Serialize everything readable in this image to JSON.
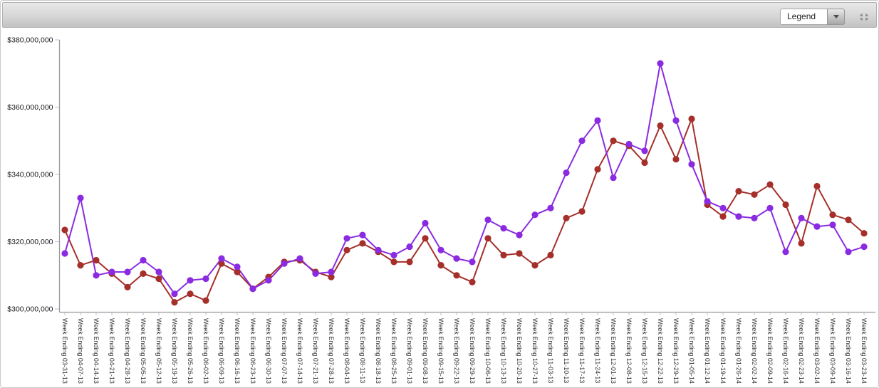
{
  "header": {
    "legend_label": "Legend"
  },
  "colors": {
    "red_series": "#a52f2a",
    "purple_series": "#8a2be2",
    "axis_line": "#999999",
    "tick_mark": "#a9c7e4",
    "axis_text": "#1a1a1a",
    "category_text": "#333333",
    "toolbar_border": "#b2b2b2"
  },
  "chart_data": {
    "type": "line",
    "title": "",
    "xlabel": "",
    "ylabel": "",
    "grid": false,
    "legend_position": "top-right dropdown (collapsed)",
    "marker": "circle",
    "ylim": [
      300000000,
      380000000
    ],
    "ytick_values": [
      380000000,
      360000000,
      340000000,
      320000000,
      300000000
    ],
    "ytick_labels": [
      "$380,000,000",
      "$360,000,000",
      "$340,000,000",
      "$320,000,000",
      "$300,000,000"
    ],
    "categories": [
      "Week Ending 03-31-13",
      "Week Ending 04-07-13",
      "Week Ending 04-14-13",
      "Week Ending 04-21-13",
      "Week Ending 04-28-13",
      "Week Ending 05-05-13",
      "Week Ending 05-12-13",
      "Week Ending 05-19-13",
      "Week Ending 05-26-13",
      "Week Ending 06-02-13",
      "Week Ending 06-09-13",
      "Week Ending 06-16-13",
      "Week Ending 06-23-13",
      "Week Ending 06-30-13",
      "Week Ending 07-07-13",
      "Week Ending 07-14-13",
      "Week Ending 07-21-13",
      "Week Ending 07-28-13",
      "Week Ending 08-04-13",
      "Week Ending 08-11-13",
      "Week Ending 08-18-13",
      "Week Ending 08-25-13",
      "Week Ending 09-01-13",
      "Week Ending 09-08-13",
      "Week Ending 09-15-13",
      "Week Ending 09-22-13",
      "Week Ending 09-29-13",
      "Week Ending 10-06-13",
      "Week Ending 10-13-13",
      "Week Ending 10-20-13",
      "Week Ending 10-27-13",
      "Week Ending 11-03-13",
      "Week Ending 11-10-13",
      "Week Ending 11-17-13",
      "Week Ending 11-24-13",
      "Week Ending 12-01-13",
      "Week Ending 12-08-13",
      "Week Ending 12-15-13",
      "Week Ending 12-22-13",
      "Week Ending 12-29-13",
      "Week Ending 01-05-14",
      "Week Ending 01-12-14",
      "Week Ending 01-19-14",
      "Week Ending 01-26-14",
      "Week Ending 02-02-14",
      "Week Ending 02-09-14",
      "Week Ending 02-16-14",
      "Week Ending 02-23-14",
      "Week Ending 03-02-14",
      "Week Ending 03-09-14",
      "Week Ending 03-16-14",
      "Week Ending 03-23-14"
    ],
    "series": [
      {
        "name": "red-series",
        "color": "#a52f2a",
        "values": [
          323500000,
          313000000,
          314500000,
          310500000,
          306500000,
          310500000,
          309000000,
          302000000,
          304500000,
          302500000,
          313500000,
          311000000,
          306000000,
          309500000,
          314000000,
          314500000,
          311000000,
          309500000,
          317500000,
          319500000,
          317000000,
          314000000,
          314000000,
          321000000,
          313000000,
          310000000,
          308000000,
          321000000,
          316000000,
          316500000,
          313000000,
          316000000,
          327000000,
          329000000,
          341500000,
          350000000,
          348500000,
          343500000,
          354500000,
          344500000,
          356500000,
          331000000,
          327500000,
          335000000,
          334000000,
          337000000,
          331000000,
          319500000,
          336500000,
          328000000,
          326500000,
          322500000
        ]
      },
      {
        "name": "purple-series",
        "color": "#8a2be2",
        "values": [
          316500000,
          333000000,
          310000000,
          311000000,
          311000000,
          314500000,
          311000000,
          304500000,
          308500000,
          309000000,
          315000000,
          312500000,
          306000000,
          308500000,
          313500000,
          315000000,
          310500000,
          311000000,
          321000000,
          322000000,
          317500000,
          316000000,
          318500000,
          325500000,
          317500000,
          315000000,
          314000000,
          326500000,
          324000000,
          322000000,
          328000000,
          330000000,
          340500000,
          350000000,
          356000000,
          339000000,
          349000000,
          347000000,
          373000000,
          356000000,
          343000000,
          332000000,
          330000000,
          327500000,
          327000000,
          330000000,
          317000000,
          327000000,
          324500000,
          325000000,
          317000000,
          318500000
        ]
      }
    ]
  }
}
